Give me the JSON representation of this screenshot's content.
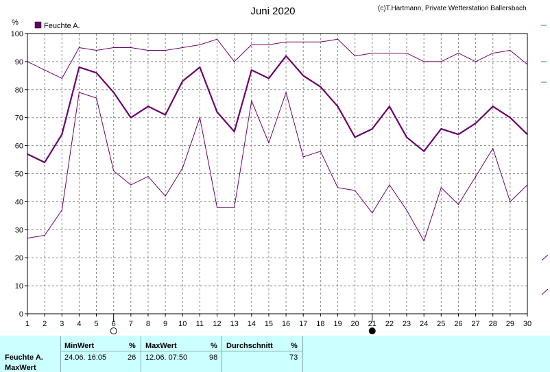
{
  "title": "Juni 2020",
  "credit": "(c)T.Hartmann, Private Wetterstation Ballersbach",
  "y_unit": "%",
  "legend_label": "Feuchte A.",
  "colors": {
    "series": "#6b006b",
    "stats_bg": "#ccffff",
    "grid": "#888888"
  },
  "moon_icons": [
    {
      "day": 6,
      "name": "full-moon-icon"
    },
    {
      "day": 21,
      "name": "new-moon-icon"
    }
  ],
  "chart_data": {
    "type": "line",
    "title": "Juni 2020",
    "ylabel": "%",
    "ylim": [
      0,
      100
    ],
    "yticks": [
      0,
      10,
      20,
      30,
      40,
      50,
      60,
      70,
      80,
      90,
      100
    ],
    "x": [
      1,
      2,
      3,
      4,
      5,
      6,
      7,
      8,
      9,
      10,
      11,
      12,
      13,
      14,
      15,
      16,
      17,
      18,
      19,
      20,
      21,
      22,
      23,
      24,
      25,
      26,
      27,
      28,
      29,
      30
    ],
    "grid": true,
    "legend": "top-left",
    "series": [
      {
        "name": "Feuchte A.",
        "role": "mean",
        "values": [
          57,
          54,
          64,
          88,
          86,
          79,
          70,
          74,
          71,
          83,
          88,
          72,
          65,
          87,
          84,
          92,
          85,
          81,
          74,
          63,
          66,
          74,
          63,
          58,
          66,
          64,
          68,
          74,
          70,
          64
        ]
      },
      {
        "role": "max",
        "values": [
          90,
          87,
          84,
          95,
          94,
          95,
          95,
          94,
          94,
          95,
          96,
          98,
          90,
          96,
          96,
          97,
          97,
          97,
          98,
          92,
          93,
          93,
          93,
          90,
          90,
          93,
          90,
          93,
          94,
          89
        ]
      },
      {
        "role": "min",
        "values": [
          27,
          28,
          37,
          79,
          77,
          51,
          46,
          49,
          42,
          52,
          70,
          38,
          38,
          76,
          61,
          79,
          56,
          58,
          45,
          44,
          36,
          46,
          37,
          26,
          45,
          39,
          49,
          59,
          40,
          46
        ]
      }
    ]
  },
  "stats": {
    "headers": {
      "min": "MinWert",
      "max": "MaxWert",
      "avg": "Durchschnitt"
    },
    "units": {
      "min": "%",
      "max": "%",
      "avg": "%"
    },
    "row_label": "Feuchte A.",
    "row_label2": "MaxWert",
    "min_time": "24.06.  16:05",
    "min_value": "26",
    "max_time": "12.06.  07:50",
    "max_value": "98",
    "avg_value": "73"
  }
}
